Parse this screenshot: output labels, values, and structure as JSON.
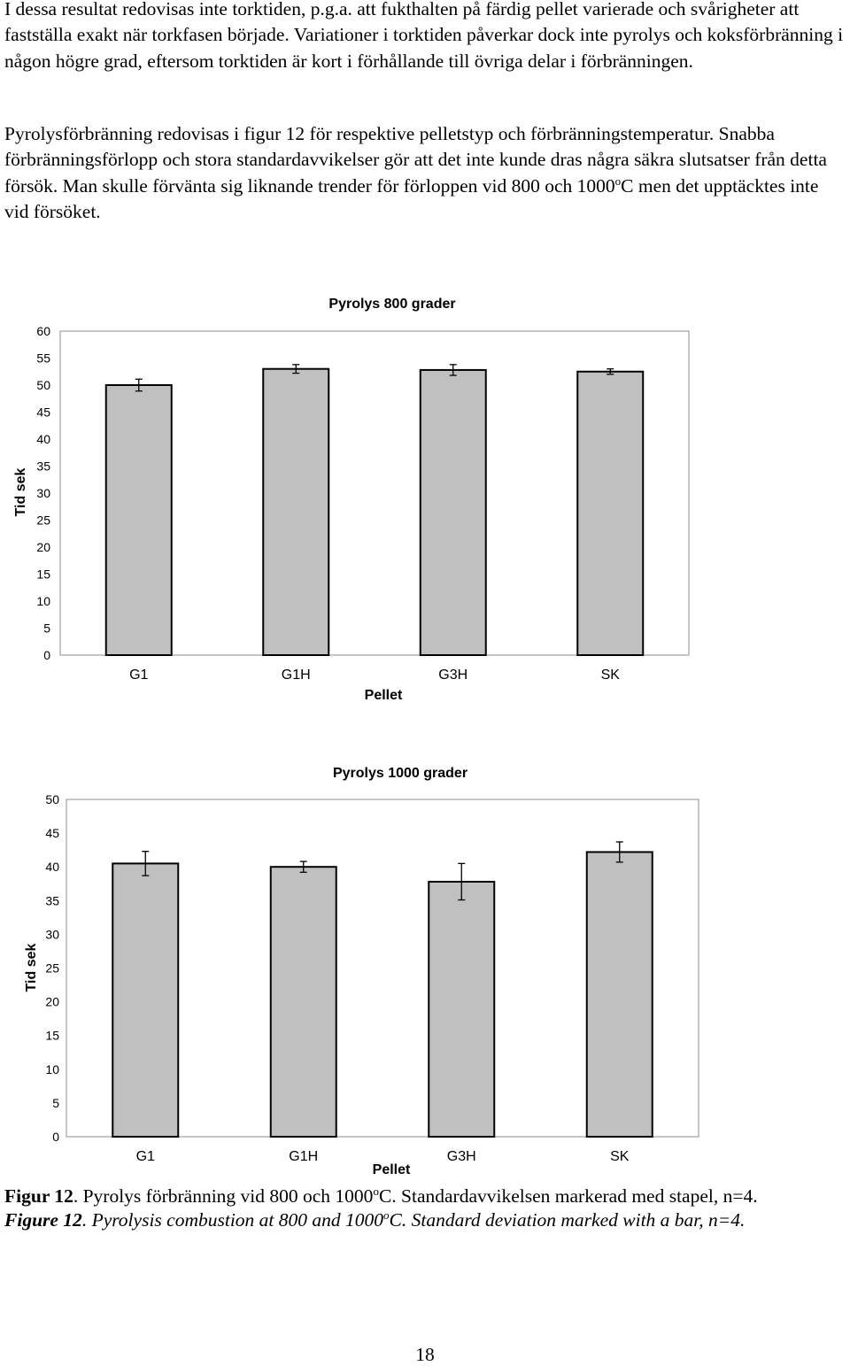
{
  "paragraphs": [
    {
      "text": "I dessa resultat redovisas inte torktiden, p.g.a. att fukthalten på färdig pellet varierade och svårigheter att fastställa exakt när torkfasen började. Variationer i torktiden påverkar dock inte pyrolys och koksförbränning i någon högre grad, eftersom torktiden är kort i förhållande till övriga delar i förbränningen."
    },
    {
      "text_before": "Pyrolysförbränning redovisas i figur 12 för respektive pelletstyp och förbränningstemperatur. Snabba förbränningsförlopp och stora standardavvikelser gör att det inte kunde dras några säkra slutsatser från detta försök. Man skulle förvänta sig liknande trender för förloppen vid 800 och 1000",
      "sup": "o",
      "text_after": "C men det upptäcktes inte vid försöket."
    }
  ],
  "chart_data": [
    {
      "type": "bar",
      "title": "Pyrolys 800 grader",
      "xlabel": "Pellet",
      "ylabel": "Tid sek",
      "categories": [
        "G1",
        "G1H",
        "G3H",
        "SK"
      ],
      "values": [
        50.0,
        53.0,
        52.8,
        52.5
      ],
      "errors": [
        1.1,
        0.8,
        1.0,
        0.5
      ],
      "ylim": [
        0,
        60
      ],
      "yticks": [
        0,
        5,
        10,
        15,
        20,
        25,
        30,
        35,
        40,
        45,
        50,
        55,
        60
      ],
      "bar_color": "#c0c0c0",
      "grid": false
    },
    {
      "type": "bar",
      "title": "Pyrolys 1000 grader",
      "xlabel": "Pellet",
      "ylabel": "Tid sek",
      "categories": [
        "G1",
        "G1H",
        "G3H",
        "SK"
      ],
      "values": [
        40.5,
        40.0,
        37.8,
        42.2
      ],
      "errors": [
        1.8,
        0.8,
        2.7,
        1.5
      ],
      "ylim": [
        0,
        50
      ],
      "yticks": [
        0,
        5,
        10,
        15,
        20,
        25,
        30,
        35,
        40,
        45,
        50
      ],
      "bar_color": "#c0c0c0",
      "grid": false
    }
  ],
  "caption": {
    "sv": {
      "label": "Figur 12",
      "text_before": ". Pyrolys förbränning vid 800 och 1000",
      "sup": "o",
      "text_after": "C. Standardavvikelsen markerad med stapel, n=4."
    },
    "en": {
      "label": "Figure 12",
      "text_before": ". Pyrolysis combustion at 800 and 1000",
      "sup": "o",
      "text_after": "C.  Standard deviation marked with a bar, n=4."
    }
  },
  "page_number": "18"
}
